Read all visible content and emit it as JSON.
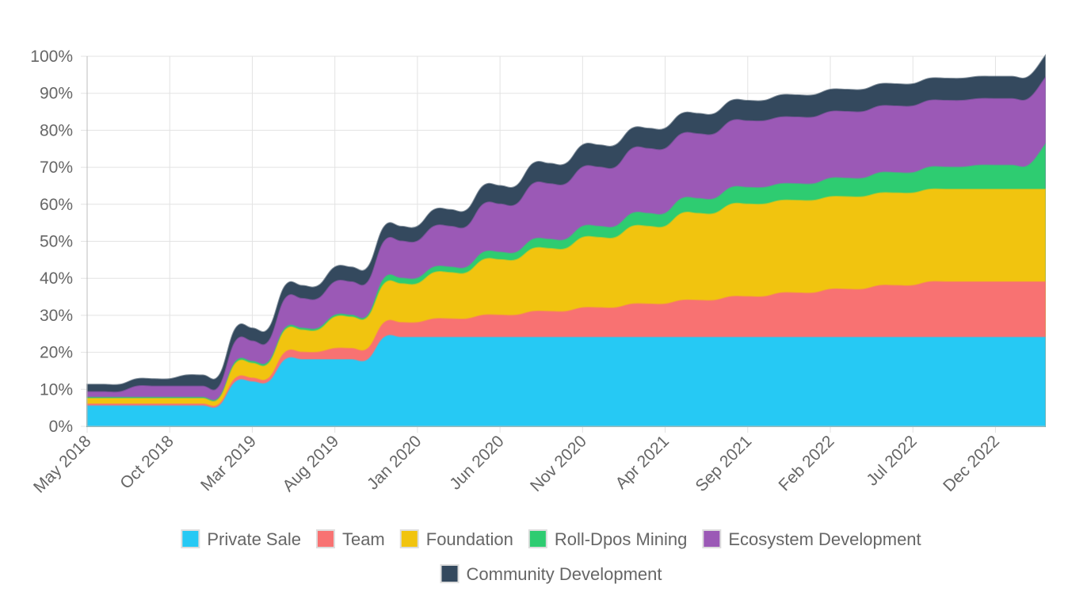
{
  "chart_data": {
    "type": "area",
    "stacked": true,
    "title": "",
    "xlabel": "",
    "ylabel": "",
    "ylim": [
      0,
      100
    ],
    "y_ticks": [
      0,
      10,
      20,
      30,
      40,
      50,
      60,
      70,
      80,
      90,
      100
    ],
    "y_tick_labels": [
      "0%",
      "10%",
      "20%",
      "30%",
      "40%",
      "50%",
      "60%",
      "70%",
      "80%",
      "90%",
      "100%"
    ],
    "grid": true,
    "legend_position": "bottom",
    "x_tick_labels": [
      "May 2018",
      "Oct 2018",
      "Mar 2019",
      "Aug 2019",
      "Jan 2020",
      "Jun 2020",
      "Nov 2020",
      "Apr 2021",
      "Sep 2021",
      "Feb 2022",
      "Jul 2022",
      "Dec 2022"
    ],
    "x": [
      "May 2018",
      "Jun 2018",
      "Jul 2018",
      "Aug 2018",
      "Sep 2018",
      "Oct 2018",
      "Nov 2018",
      "Dec 2018",
      "Jan 2019",
      "Feb 2019",
      "Mar 2019",
      "Apr 2019",
      "May 2019",
      "Jun 2019",
      "Jul 2019",
      "Aug 2019",
      "Sep 2019",
      "Oct 2019",
      "Nov 2019",
      "Dec 2019",
      "Jan 2020",
      "Feb 2020",
      "Mar 2020",
      "Apr 2020",
      "May 2020",
      "Jun 2020",
      "Jul 2020",
      "Aug 2020",
      "Sep 2020",
      "Oct 2020",
      "Nov 2020",
      "Dec 2020",
      "Jan 2021",
      "Feb 2021",
      "Mar 2021",
      "Apr 2021",
      "May 2021",
      "Jun 2021",
      "Jul 2021",
      "Aug 2021",
      "Sep 2021",
      "Oct 2021",
      "Nov 2021",
      "Dec 2021",
      "Jan 2022",
      "Feb 2022",
      "Mar 2022",
      "Apr 2022",
      "May 2022",
      "Jun 2022",
      "Jul 2022",
      "Aug 2022",
      "Sep 2022",
      "Oct 2022",
      "Nov 2022",
      "Dec 2022",
      "Jan 2023",
      "Feb 2023",
      "Mar 2023"
    ],
    "series": [
      {
        "name": "Private Sale",
        "color": "#26c9f4",
        "values": [
          5.5,
          5.5,
          5.5,
          5.5,
          5.5,
          5.5,
          5.5,
          5.5,
          5.5,
          12,
          12,
          12,
          18,
          18,
          18,
          18,
          18,
          18,
          24,
          24,
          24,
          24,
          24,
          24,
          24,
          24,
          24,
          24,
          24,
          24,
          24,
          24,
          24,
          24,
          24,
          24,
          24,
          24,
          24,
          24,
          24,
          24,
          24,
          24,
          24,
          24,
          24,
          24,
          24,
          24,
          24,
          24,
          24,
          24,
          24,
          24,
          24,
          24,
          24
        ]
      },
      {
        "name": "Team",
        "color": "#f87272",
        "values": [
          0.5,
          0.5,
          0.5,
          0.5,
          0.5,
          0.5,
          0.5,
          0.5,
          0.5,
          1,
          1,
          1,
          2,
          2,
          2,
          3,
          3,
          3,
          4,
          4,
          4,
          5,
          5,
          5,
          6,
          6,
          6,
          7,
          7,
          7,
          8,
          8,
          8,
          9,
          9,
          9,
          10,
          10,
          10,
          11,
          11,
          11,
          12,
          12,
          12,
          13,
          13,
          13,
          14,
          14,
          14,
          15,
          15,
          15,
          15,
          15,
          15,
          15,
          15
        ]
      },
      {
        "name": "Foundation",
        "color": "#f1c40f",
        "values": [
          1.5,
          1.5,
          1.5,
          1.5,
          1.5,
          1.5,
          1.5,
          1.5,
          1.5,
          4,
          4,
          4,
          6,
          6,
          6,
          8.5,
          8.5,
          8.5,
          10.5,
          10.5,
          10.5,
          12.5,
          12.5,
          12.5,
          15,
          15,
          15,
          17,
          17,
          17,
          19,
          19,
          19,
          21,
          21,
          21,
          23.5,
          23.5,
          23.5,
          25,
          25,
          25,
          25,
          25,
          25,
          25,
          25,
          25,
          25,
          25,
          25,
          25,
          25,
          25,
          25,
          25,
          25,
          25,
          25
        ]
      },
      {
        "name": "Roll-Dpos Mining",
        "color": "#2ecc71",
        "values": [
          0.3,
          0.3,
          0.3,
          0.3,
          0.3,
          0.3,
          0.3,
          0.3,
          0.3,
          0.5,
          0.5,
          0.5,
          0.5,
          0.5,
          0.5,
          0.5,
          0.5,
          0.5,
          1.5,
          1.5,
          1.5,
          1.5,
          1.5,
          1.5,
          2,
          2,
          2,
          2.5,
          2.5,
          2.5,
          3,
          3,
          3,
          3.5,
          3.5,
          3.5,
          4,
          4,
          4,
          4.5,
          4.5,
          4.5,
          4.5,
          4.5,
          4.5,
          5,
          5,
          5,
          5.5,
          5.5,
          5.5,
          6,
          6,
          6,
          6.5,
          6.5,
          6.5,
          6.5,
          12
        ]
      },
      {
        "name": "Ecosystem Development",
        "color": "#9b59b6",
        "values": [
          1.5,
          1.5,
          1.5,
          3,
          3,
          3,
          3,
          3,
          3,
          5.5,
          5.5,
          5.5,
          8,
          8,
          8,
          9,
          9,
          9,
          10,
          10,
          10,
          11,
          11,
          11,
          13,
          13,
          13,
          15,
          15,
          15,
          16,
          16,
          16,
          17.5,
          17.5,
          17.5,
          17.5,
          17.5,
          17.5,
          18,
          18,
          18,
          18,
          18,
          18,
          18,
          18,
          18,
          18,
          18,
          18,
          18,
          18,
          18,
          18,
          18,
          18,
          18,
          18
        ]
      },
      {
        "name": "Community Development",
        "color": "#34495e",
        "values": [
          2,
          2,
          2,
          2,
          2,
          2,
          3,
          3,
          3,
          3.5,
          3.5,
          3.5,
          3.5,
          3.5,
          3.5,
          4,
          4,
          4,
          4,
          4,
          4,
          4.5,
          4.5,
          4.5,
          5,
          5,
          5,
          5.5,
          5.5,
          5.5,
          6,
          6,
          6,
          5.5,
          5.5,
          5.5,
          5.5,
          5.5,
          5.5,
          5.5,
          5.5,
          5.5,
          6,
          6,
          6,
          6,
          6,
          6,
          6,
          6,
          6,
          6,
          6,
          6,
          6,
          6,
          6,
          6,
          6
        ]
      }
    ]
  }
}
